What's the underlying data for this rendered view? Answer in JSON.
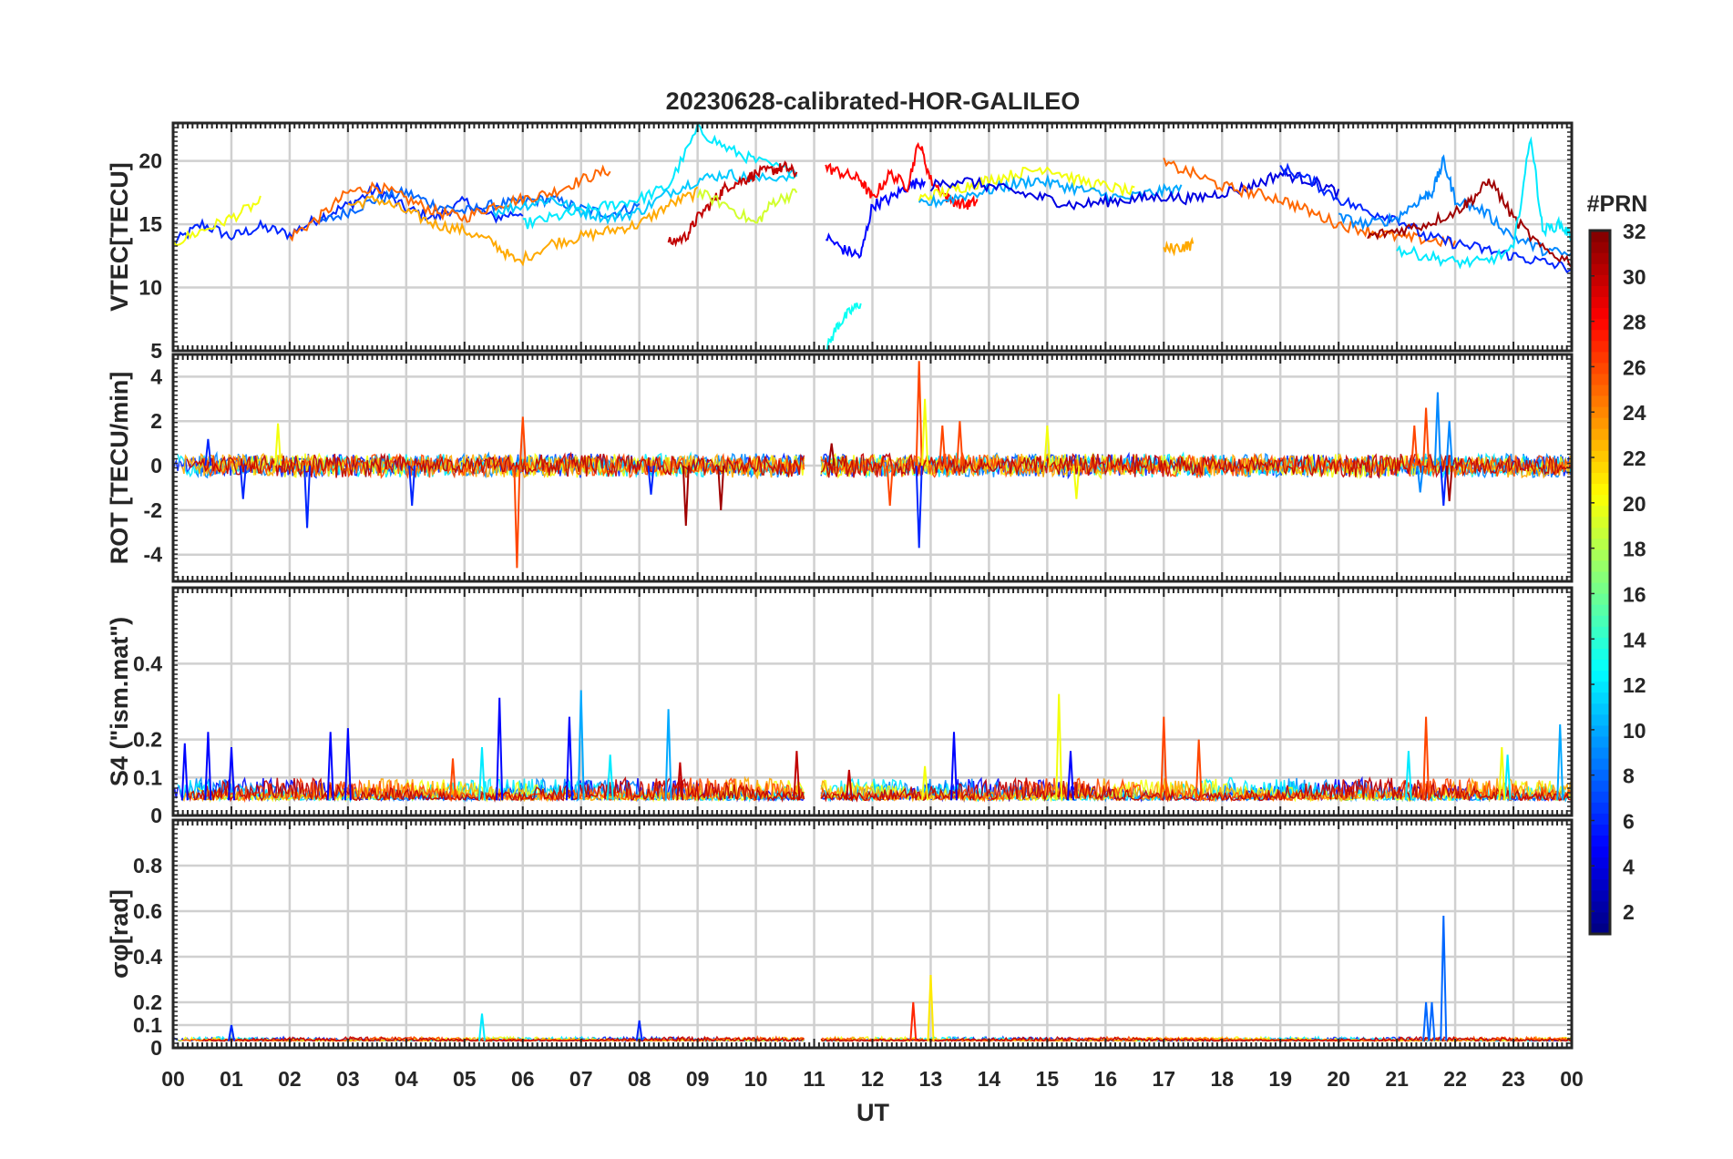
{
  "chart_data": {
    "type": "line",
    "title": "20230628-calibrated-HOR-GALILEO",
    "xlabel": "UT",
    "x_ticks": [
      "00",
      "01",
      "02",
      "03",
      "04",
      "05",
      "06",
      "07",
      "08",
      "09",
      "10",
      "11",
      "12",
      "13",
      "14",
      "15",
      "16",
      "17",
      "18",
      "19",
      "20",
      "21",
      "22",
      "23",
      "00"
    ],
    "xlim": [
      0,
      24
    ],
    "colorbar": {
      "label": "#PRN",
      "range": [
        1,
        32
      ],
      "ticks": [
        "2",
        "4",
        "6",
        "8",
        "10",
        "12",
        "14",
        "16",
        "18",
        "20",
        "22",
        "24",
        "26",
        "28",
        "30",
        "32"
      ],
      "colormap": "jet"
    },
    "data_gap": [
      10.85,
      11.1
    ],
    "panels": [
      {
        "id": "vtec",
        "ylabel": "VTEC[TECU]",
        "ylim": [
          5,
          23
        ],
        "yticks": [
          5,
          10,
          15,
          20
        ],
        "series": [
          {
            "prn": 6,
            "t": [
              0.0,
              0.5,
              1.0,
              1.5,
              2.0,
              2.5,
              3.0,
              3.5,
              4.0,
              4.5,
              5.0,
              5.5,
              6.0
            ],
            "v": [
              13.5,
              15.0,
              14.0,
              14.8,
              14.2,
              15.5,
              16.5,
              17.8,
              16.2,
              15.5,
              16.8,
              15.5,
              16.0
            ]
          },
          {
            "prn": 8,
            "t": [
              2.5,
              3.0,
              3.5,
              4.0,
              4.5,
              5.0,
              5.5,
              6.0,
              6.5,
              7.0,
              7.5,
              8.0
            ],
            "v": [
              15.0,
              16.0,
              17.0,
              17.5,
              16.5,
              16.0,
              16.5,
              16.8,
              17.0,
              16.2,
              15.8,
              16.5
            ]
          },
          {
            "prn": 25,
            "t": [
              2.0,
              2.5,
              3.0,
              3.5,
              4.0,
              4.5,
              5.0,
              5.5,
              6.0,
              6.5,
              7.0,
              7.5
            ],
            "v": [
              14.0,
              15.5,
              17.5,
              18.0,
              17.0,
              16.0,
              15.5,
              16.5,
              17.0,
              17.5,
              18.5,
              19.3
            ]
          },
          {
            "prn": 23,
            "t": [
              3.0,
              3.5,
              4.0,
              4.5,
              5.0,
              5.5,
              5.9,
              6.5,
              7.0,
              7.5,
              8.0,
              8.5,
              9.0
            ],
            "v": [
              16.5,
              17.0,
              16.0,
              15.0,
              14.5,
              13.5,
              12.0,
              13.5,
              14.0,
              14.5,
              15.0,
              16.5,
              17.5
            ]
          },
          {
            "prn": 20,
            "t": [
              0.0,
              0.5,
              1.0,
              1.5
            ],
            "v": [
              13.5,
              14.5,
              15.5,
              16.8
            ]
          },
          {
            "prn": 12,
            "t": [
              6.0,
              6.5,
              7.0,
              7.5,
              8.0,
              8.5,
              9.0,
              9.5,
              10.0,
              10.7
            ],
            "v": [
              15.0,
              15.5,
              16.0,
              16.5,
              17.0,
              18.0,
              22.5,
              21.0,
              20.0,
              19.0
            ]
          },
          {
            "prn": 11,
            "t": [
              5.5,
              6.0,
              6.5,
              7.0,
              7.5,
              8.0,
              8.5,
              9.0,
              9.5,
              10.0,
              10.7
            ],
            "v": [
              16.0,
              16.5,
              17.0,
              16.0,
              15.5,
              16.0,
              17.5,
              18.5,
              19.0,
              18.5,
              19.0
            ]
          },
          {
            "prn": 30,
            "t": [
              8.5,
              8.8,
              9.0,
              9.3,
              9.5,
              9.8,
              10.0,
              10.3,
              10.5,
              10.7
            ],
            "v": [
              13.5,
              14.0,
              15.5,
              17.0,
              18.0,
              18.5,
              19.0,
              19.3,
              19.5,
              19.0
            ]
          },
          {
            "prn": 19,
            "t": [
              9.0,
              9.5,
              10.0,
              10.3,
              10.7
            ],
            "v": [
              17.5,
              16.5,
              15.0,
              16.8,
              17.5
            ]
          },
          {
            "prn": 5,
            "t": [
              11.2,
              11.5,
              11.8,
              12.0,
              12.3,
              12.6,
              12.9
            ],
            "v": [
              14.0,
              13.0,
              12.5,
              16.5,
              17.0,
              18.0,
              18.5
            ]
          },
          {
            "prn": 13,
            "t": [
              11.2,
              11.4,
              11.6,
              11.8
            ],
            "v": [
              5.0,
              7.0,
              8.0,
              8.8
            ]
          },
          {
            "prn": 28,
            "t": [
              11.2,
              11.5,
              11.8,
              12.0,
              12.3,
              12.6,
              12.8,
              13.0,
              13.3,
              13.6,
              13.8
            ],
            "v": [
              19.5,
              19.0,
              18.5,
              17.0,
              19.0,
              18.0,
              21.5,
              18.5,
              17.0,
              16.5,
              16.8
            ]
          },
          {
            "prn": 20,
            "t": [
              12.8,
              13.2,
              13.6,
              14.0,
              14.5,
              15.0,
              15.5,
              16.0,
              16.5
            ],
            "v": [
              17.0,
              17.5,
              18.0,
              18.5,
              19.0,
              19.5,
              18.5,
              18.0,
              17.5
            ]
          },
          {
            "prn": 10,
            "t": [
              12.8,
              13.3,
              13.8,
              14.3,
              14.8,
              15.3,
              15.8,
              16.3,
              16.8,
              17.3
            ],
            "v": [
              16.5,
              17.0,
              17.5,
              18.0,
              18.5,
              18.0,
              17.5,
              17.0,
              17.5,
              17.8
            ]
          },
          {
            "prn": 4,
            "t": [
              13.0,
              13.5,
              14.0,
              14.5,
              15.0,
              15.5,
              16.0,
              16.5,
              17.0,
              17.5,
              18.0,
              18.5,
              19.0,
              19.5,
              20.0
            ],
            "v": [
              18.0,
              18.5,
              18.0,
              17.5,
              17.0,
              16.5,
              16.8,
              17.0,
              17.2,
              17.0,
              17.5,
              18.0,
              19.0,
              18.5,
              17.5
            ]
          },
          {
            "prn": 25,
            "t": [
              17.0,
              17.5,
              18.0,
              18.5,
              19.0,
              19.5,
              20.0,
              20.5,
              21.0,
              21.5,
              22.0
            ],
            "v": [
              19.8,
              19.0,
              18.0,
              17.5,
              17.0,
              16.0,
              15.0,
              14.5,
              14.0,
              13.8,
              13.5
            ]
          },
          {
            "prn": 23,
            "t": [
              17.0,
              17.3,
              17.5
            ],
            "v": [
              13.0,
              13.2,
              13.4
            ]
          },
          {
            "prn": 6,
            "t": [
              19.0,
              19.5,
              20.0,
              20.5,
              21.0,
              21.5,
              22.0,
              22.5,
              23.0,
              23.5,
              24.0
            ],
            "v": [
              19.5,
              18.5,
              17.0,
              16.0,
              15.5,
              14.0,
              13.5,
              13.0,
              12.5,
              12.0,
              11.5
            ]
          },
          {
            "prn": 9,
            "t": [
              20.0,
              20.5,
              21.0,
              21.4,
              21.6,
              21.8,
              22.0,
              22.5,
              23.0,
              23.5,
              24.0
            ],
            "v": [
              15.5,
              15.0,
              15.5,
              17.0,
              17.5,
              20.0,
              17.0,
              16.0,
              14.0,
              13.0,
              12.5
            ]
          },
          {
            "prn": 31,
            "t": [
              20.5,
              21.0,
              21.5,
              22.0,
              22.3,
              22.6,
              23.0,
              23.5,
              24.0
            ],
            "v": [
              14.0,
              14.5,
              15.0,
              16.0,
              17.0,
              18.5,
              15.5,
              13.0,
              12.0
            ]
          },
          {
            "prn": 12,
            "t": [
              21.0,
              21.5,
              22.0,
              22.5,
              23.0,
              23.3,
              23.5,
              23.8,
              24.0
            ],
            "v": [
              13.0,
              12.5,
              12.0,
              12.0,
              13.0,
              22.0,
              14.5,
              15.0,
              14.0
            ]
          }
        ]
      },
      {
        "id": "rot",
        "ylabel": "ROT [TECU/min]",
        "ylim": [
          -5.2,
          5.0
        ],
        "yticks": [
          -4,
          -2,
          0,
          2,
          4
        ],
        "series": [
          {
            "prn": 6,
            "spikes": [
              [
                0.6,
                1.2
              ],
              [
                1.2,
                -1.5
              ],
              [
                2.3,
                -2.8
              ],
              [
                4.1,
                -1.8
              ],
              [
                8.2,
                -1.3
              ],
              [
                12.8,
                -3.7
              ],
              [
                21.8,
                -1.8
              ]
            ]
          },
          {
            "prn": 26,
            "spikes": [
              [
                5.9,
                -4.6
              ],
              [
                6.0,
                2.2
              ],
              [
                12.8,
                4.7
              ],
              [
                12.3,
                -1.8
              ],
              [
                13.2,
                1.8
              ],
              [
                13.5,
                2.0
              ],
              [
                21.3,
                1.8
              ],
              [
                21.5,
                2.6
              ]
            ]
          },
          {
            "prn": 20,
            "spikes": [
              [
                1.8,
                1.9
              ],
              [
                12.9,
                3.0
              ],
              [
                15.0,
                1.8
              ],
              [
                15.5,
                -1.5
              ]
            ]
          },
          {
            "prn": 31,
            "spikes": [
              [
                8.8,
                -2.7
              ],
              [
                9.4,
                -2.0
              ],
              [
                11.3,
                1.0
              ],
              [
                21.9,
                -1.6
              ]
            ]
          },
          {
            "prn": 9,
            "spikes": [
              [
                21.7,
                3.3
              ],
              [
                21.9,
                2.0
              ],
              [
                21.4,
                -1.2
              ]
            ]
          }
        ]
      },
      {
        "id": "s4",
        "ylabel": "S4 (\"ism.mat\")",
        "ylim": [
          0,
          0.6
        ],
        "yticks": [
          0,
          0.1,
          0.2,
          0.4
        ],
        "series": [
          {
            "prn": 5,
            "spikes": [
              [
                0.2,
                0.19
              ],
              [
                0.6,
                0.22
              ],
              [
                1.0,
                0.18
              ],
              [
                2.7,
                0.22
              ],
              [
                3.0,
                0.23
              ],
              [
                5.6,
                0.31
              ],
              [
                6.8,
                0.26
              ],
              [
                13.4,
                0.22
              ],
              [
                15.4,
                0.17
              ]
            ]
          },
          {
            "prn": 10,
            "spikes": [
              [
                7.0,
                0.33
              ],
              [
                8.5,
                0.28
              ],
              [
                23.8,
                0.24
              ]
            ]
          },
          {
            "prn": 12,
            "spikes": [
              [
                5.3,
                0.18
              ],
              [
                7.5,
                0.16
              ],
              [
                21.2,
                0.17
              ],
              [
                22.9,
                0.16
              ]
            ]
          },
          {
            "prn": 20,
            "spikes": [
              [
                15.2,
                0.32
              ],
              [
                12.9,
                0.13
              ],
              [
                22.8,
                0.18
              ]
            ]
          },
          {
            "prn": 26,
            "spikes": [
              [
                17.0,
                0.26
              ],
              [
                17.6,
                0.2
              ],
              [
                21.5,
                0.26
              ],
              [
                4.8,
                0.15
              ]
            ]
          },
          {
            "prn": 30,
            "spikes": [
              [
                8.7,
                0.14
              ],
              [
                11.6,
                0.12
              ],
              [
                10.7,
                0.17
              ]
            ]
          }
        ]
      },
      {
        "id": "sigma",
        "ylabel": "σφ[rad]",
        "ylim": [
          0,
          1.0
        ],
        "yticks": [
          0,
          0.1,
          0.2,
          0.4,
          0.6,
          0.8
        ],
        "series": [
          {
            "prn": 8,
            "spikes": [
              [
                21.8,
                0.58
              ],
              [
                21.5,
                0.2
              ],
              [
                21.6,
                0.2
              ]
            ]
          },
          {
            "prn": 21,
            "spikes": [
              [
                13.0,
                0.32
              ]
            ]
          },
          {
            "prn": 27,
            "spikes": [
              [
                12.7,
                0.2
              ]
            ]
          },
          {
            "prn": 12,
            "spikes": [
              [
                5.3,
                0.15
              ],
              [
                1.0,
                0.1
              ]
            ]
          },
          {
            "prn": 6,
            "spikes": [
              [
                8.0,
                0.12
              ],
              [
                1.0,
                0.1
              ]
            ]
          }
        ]
      }
    ]
  }
}
